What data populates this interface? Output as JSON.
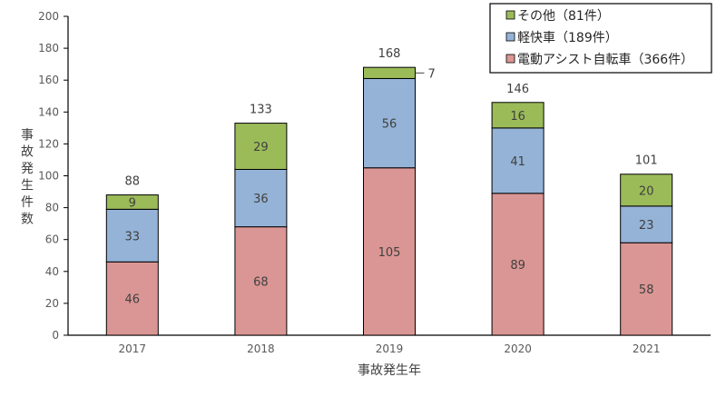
{
  "chart_data": {
    "type": "bar",
    "stacked": true,
    "categories": [
      "2017",
      "2018",
      "2019",
      "2020",
      "2021"
    ],
    "series": [
      {
        "name": "電動アシスト自転車（366件）",
        "color": "#da9694",
        "values": [
          46,
          68,
          105,
          89,
          58
        ]
      },
      {
        "name": "軽快車（189件）",
        "color": "#95b3d7",
        "values": [
          33,
          36,
          56,
          41,
          23
        ]
      },
      {
        "name": "その他（81件）",
        "color": "#9bbb59",
        "values": [
          9,
          29,
          7,
          16,
          20
        ]
      }
    ],
    "totals": [
      88,
      133,
      168,
      146,
      101
    ],
    "xlabel": "事故発生年",
    "ylabel": "事故発生件数",
    "ylim": [
      0,
      200
    ],
    "yticks": [
      0,
      20,
      40,
      60,
      80,
      100,
      120,
      140,
      160,
      180,
      200
    ],
    "grid": false,
    "legend_position": "top-right"
  }
}
